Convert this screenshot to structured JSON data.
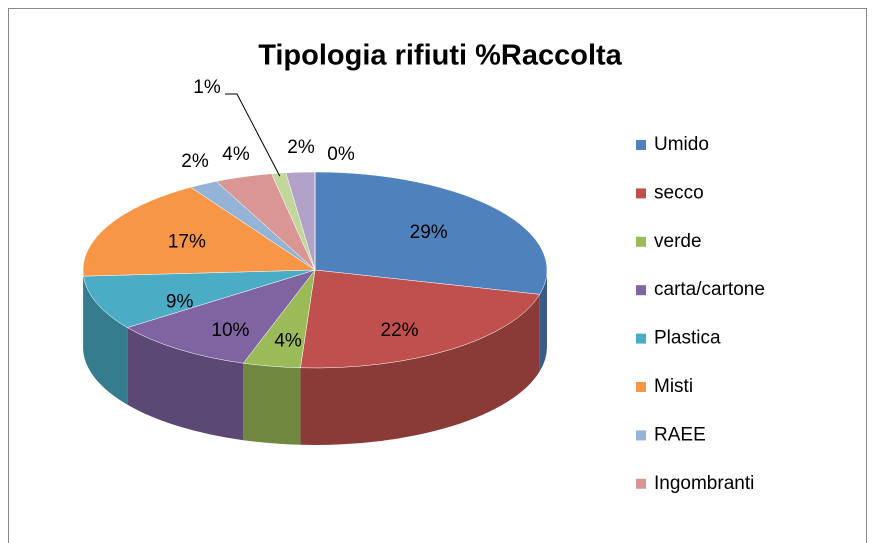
{
  "chart_data": {
    "type": "pie3d",
    "title": "Tipologia rifiuti %Raccolta",
    "categories": [
      "Umido",
      "secco",
      "verde",
      "carta/cartone",
      "Plastica",
      "Misti",
      "RAEE",
      "Ingombranti",
      null,
      null,
      null
    ],
    "values": [
      29,
      22,
      4,
      10,
      9,
      17,
      2,
      4,
      1,
      2,
      0
    ],
    "value_labels": [
      "29%",
      "22%",
      "4%",
      "10%",
      "9%",
      "17%",
      "2%",
      "4%",
      "1%",
      "2%",
      "0%"
    ],
    "colors": [
      "#4f81bd",
      "#c0504d",
      "#9bbb59",
      "#8064a2",
      "#4bacc6",
      "#f79646",
      "#95b3d7",
      "#d99694",
      "#c3d69b",
      "#b3a2c7",
      "#fac090"
    ],
    "legend": "right"
  }
}
